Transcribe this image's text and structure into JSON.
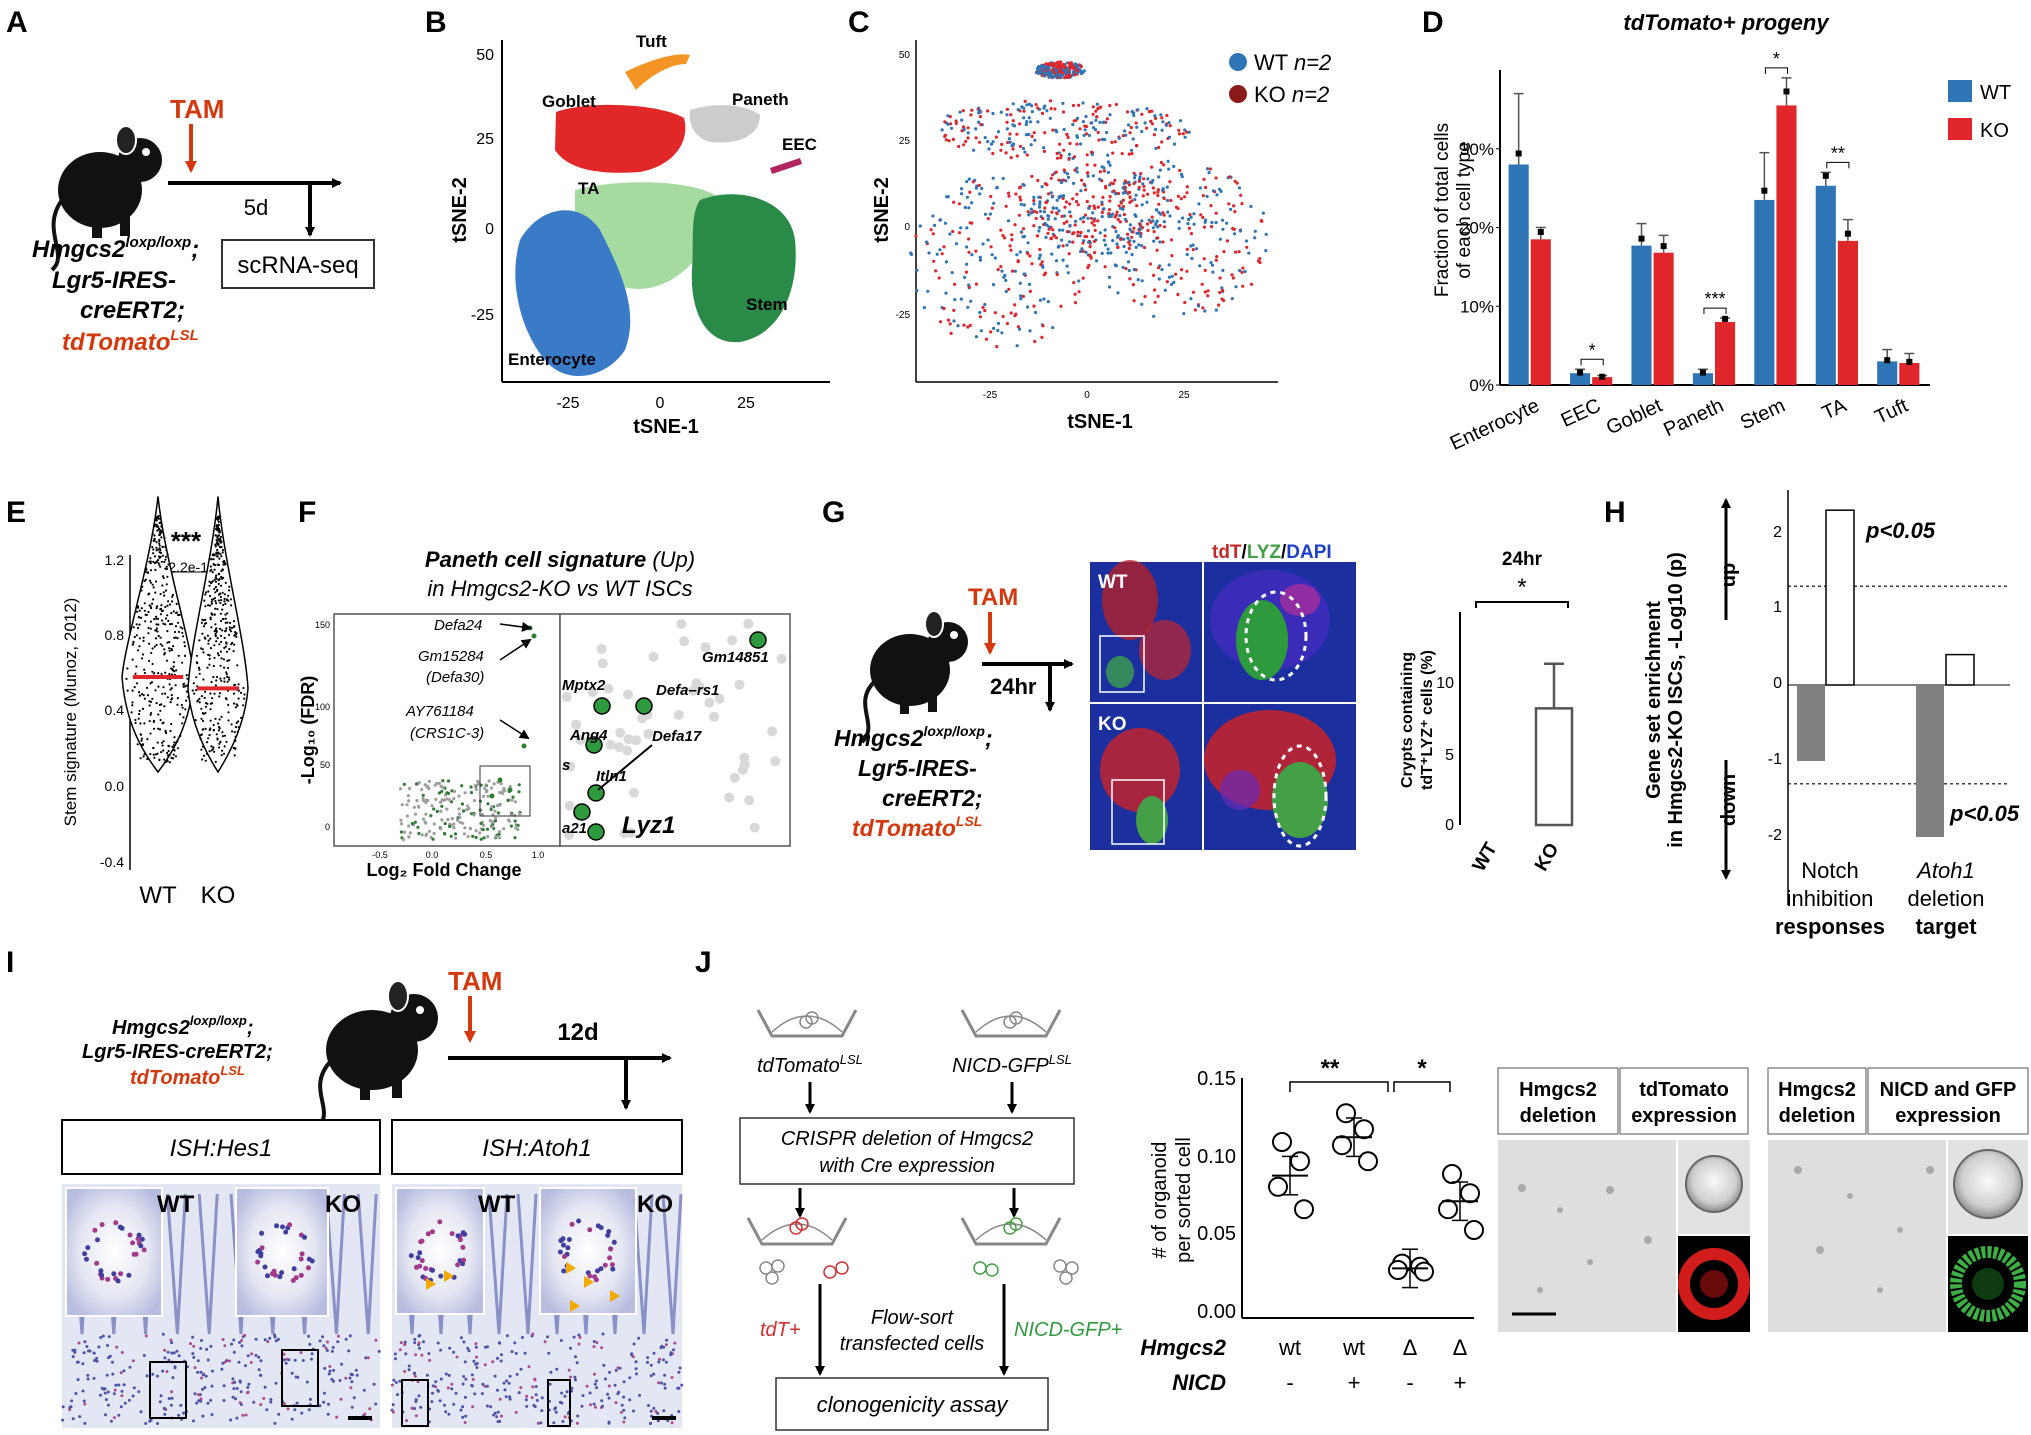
{
  "colors": {
    "wt": "#2e75b6",
    "ko": "#e0262b",
    "red": "#d4380d",
    "green": "#2e7d32",
    "tam": "#d4380d"
  },
  "panels": {
    "A": "A",
    "B": "B",
    "C": "C",
    "D": "D",
    "E": "E",
    "F": "F",
    "G": "G",
    "H": "H",
    "I": "I",
    "J": "J"
  },
  "a": {
    "tam": "TAM",
    "days": "5d",
    "assay": "scRNA-seq",
    "g1": "Hmgcs2",
    "g1sup": "loxp/loxp",
    "g1end": ";",
    "g2": "Lgr5-IRES-",
    "g3": "creERT2",
    "g3end": ";",
    "g4": "tdTomato",
    "g4sup": "LSL"
  },
  "b": {
    "xlabel": "tSNE-1",
    "ylabel": "tSNE-2",
    "yticks": [
      "50",
      "25",
      "0",
      "-25"
    ],
    "xticks": [
      "-25",
      "0",
      "25"
    ],
    "clusters": {
      "tuft": "Tuft",
      "goblet": "Goblet",
      "paneth": "Paneth",
      "eec": "EEC",
      "ta": "TA",
      "stem": "Stem",
      "enterocyte": "Enterocyte"
    }
  },
  "c": {
    "xlabel": "tSNE-1",
    "ylabel": "tSNE-2",
    "yticks": [
      "50",
      "25",
      "0",
      "-25"
    ],
    "xticks": [
      "-25",
      "0",
      "25"
    ],
    "legend_wt": "WT",
    "legend_wt_n": "n=2",
    "legend_ko": "KO",
    "legend_ko_n": "n=2"
  },
  "d": {
    "title": "tdTomato+ progeny",
    "ylabel1": "Fraction of total cells",
    "ylabel2": "of each cell type",
    "yticks": [
      "0%",
      "10%",
      "20%",
      "30%"
    ],
    "legend_wt": "WT",
    "legend_ko": "KO"
  },
  "chart_data": [
    {
      "type": "bar",
      "title": "tdTomato+ progeny",
      "ylabel": "Fraction of total cells of each cell type",
      "categories": [
        "Enterocyte",
        "EEC",
        "Goblet",
        "Paneth",
        "Stem",
        "TA",
        "Tuft"
      ],
      "series": [
        {
          "name": "WT",
          "values": [
            28,
            1.5,
            17.7,
            1.5,
            23.5,
            25.3,
            3.0
          ]
        },
        {
          "name": "KO",
          "values": [
            18.5,
            1.0,
            16.8,
            8.0,
            35.5,
            18.3,
            2.8
          ]
        }
      ],
      "significance": [
        "",
        "*",
        "",
        "***",
        "*",
        "**",
        ""
      ],
      "ylim": [
        0,
        40
      ]
    },
    {
      "type": "bar",
      "title": "24hr",
      "ylabel": "Crypts containing tdT+LYZ+ cells (%)",
      "categories": [
        "WT",
        "KO"
      ],
      "values": [
        0,
        8.1
      ],
      "significance": "*",
      "ylim": [
        0,
        15
      ]
    },
    {
      "type": "bar",
      "ylabel": "Gene set enrichment in Hmgcs2-KO ISCs, -Log10(p)",
      "categories": [
        "Notch inhibition responses",
        "Atoh1 deletion target"
      ],
      "series": [
        {
          "name": "down",
          "values": [
            -1.0,
            -2.0
          ]
        },
        {
          "name": "up",
          "values": [
            2.3,
            0.4
          ]
        }
      ],
      "ylim": [
        -2.2,
        2.5
      ]
    },
    {
      "type": "scatter",
      "ylabel": "# of organoid per sorted cell",
      "categories": [
        "wt -",
        "wt +",
        "Δ -",
        "Δ +"
      ],
      "series": [
        {
          "name": "wt -",
          "values": [
            0.11,
            0.098,
            0.082,
            0.068
          ]
        },
        {
          "name": "wt +",
          "values": [
            0.128,
            0.118,
            0.108,
            0.098
          ]
        },
        {
          "name": "Δ -",
          "values": [
            0.034,
            0.032,
            0.03,
            0.029
          ]
        },
        {
          "name": "Δ +",
          "values": [
            0.09,
            0.078,
            0.068,
            0.055
          ]
        }
      ],
      "means": [
        0.089,
        0.113,
        0.031,
        0.073
      ],
      "ylim": [
        0,
        0.15
      ]
    }
  ],
  "e": {
    "stars": "***",
    "pval": "< 2.2e-16",
    "ylabel": "Stem signature (Munoz, 2012)",
    "yticks": [
      "1.2",
      "0.8",
      "0.4",
      "0.0",
      "-0.4"
    ],
    "xticks": [
      "WT",
      "KO"
    ]
  },
  "f": {
    "title_bold": "Paneth cell signature",
    "title_up": " (Up)",
    "subtitle": "in Hmgcs2-KO vs WT ISCs",
    "ylabel": "-Log₁₀ (FDR)",
    "xlabel": "Log₂ Fold Change",
    "yticks": [
      "150",
      "100",
      "50",
      "0"
    ],
    "xticks": [
      "-0.5",
      "0.0",
      "0.5",
      "1.0"
    ],
    "genes_left": {
      "defa24": "Defa24",
      "gm15284": "Gm15284",
      "defa30": "(Defa30)",
      "ay": "AY761184",
      "crs": "(CRS1C-3)"
    },
    "genes_right": {
      "gm14851": "Gm14851",
      "mptx2": "Mptx2",
      "defars1": "Defa–rs1",
      "ang4": "Ang4",
      "defa17": "Defa17",
      "itln1": "Itln1",
      "s": "s",
      "a21": "a21",
      "lyz1": "Lyz1"
    }
  },
  "g": {
    "tam": "TAM",
    "hours": "24hr",
    "g1": "Hmgcs2",
    "g1sup": "loxp/loxp",
    "g1end": ";",
    "g2": "Lgr5-IRES-",
    "g3": "creERT2",
    "g3end": ";",
    "g4": "tdTomato",
    "g4sup": "LSL",
    "stain_tdt": "tdT",
    "stain_lyz": "LYZ",
    "stain_dapi": "DAPI",
    "wt": "WT",
    "ko": "KO",
    "chart_title": "24hr",
    "stars": "*",
    "ylabel1": "Crypts containing",
    "ylabel2": "tdT⁺LYZ⁺ cells (%)",
    "yticks": [
      "10",
      "5",
      "0"
    ],
    "xticks": [
      "WT",
      "KO"
    ]
  },
  "h": {
    "ylabel1": "Gene set enrichment",
    "ylabel2": "in Hmgcs2-KO ISCs, -Log10 (p)",
    "up": "up",
    "down": "down",
    "yticks": [
      "2",
      "1",
      "0",
      "-1",
      "-2"
    ],
    "p_up": "p<0.05",
    "p_down": "p<0.05",
    "cat1a": "Notch",
    "cat1b": "inhibition",
    "cat1c": "responses",
    "cat2a": "Atoh1",
    "cat2b": "deletion",
    "cat2c": "target"
  },
  "i": {
    "tam": "TAM",
    "days": "12d",
    "g1": "Hmgcs2",
    "g1sup": "loxp/loxp",
    "g1end": ";",
    "g2": "Lgr5-IRES-creERT2",
    "g2end": ";",
    "g4": "tdTomato",
    "g4sup": "LSL",
    "ish_hes1": "ISH:Hes1",
    "ish_atoh1": "ISH:Atoh1",
    "wt": "WT",
    "ko": "KO"
  },
  "j": {
    "td_lsl": "tdTomato",
    "td_lsl_sup": "LSL",
    "nicd_lsl": "NICD-GFP",
    "nicd_lsl_sup": "LSL",
    "crispr1": "CRISPR deletion of Hmgcs2",
    "crispr2": "with Cre expression",
    "tdplus": "tdT+",
    "nicdplus": "NICD-GFP+",
    "flow1": "Flow-sort",
    "flow2": "transfected cells",
    "assay": "clonogenicity assay",
    "ylabel1": "# of organoid",
    "ylabel2": "per sorted cell",
    "yticks": [
      "0.15",
      "0.10",
      "0.05",
      "0.00"
    ],
    "stars_left": "**",
    "stars_right": "*",
    "row_hmgcs2": "Hmgcs2",
    "row_nicd": "NICD",
    "hm_vals": [
      "wt",
      "wt",
      "Δ",
      "Δ"
    ],
    "nicd_vals": [
      "-",
      "+",
      "-",
      "+"
    ],
    "box1a": "Hmgcs2",
    "box1b": "deletion",
    "box2a": "tdTomato",
    "box2b": "expression",
    "box3a": "Hmgcs2",
    "box3b": "deletion",
    "box4a": "NICD and GFP",
    "box4b": "expression"
  }
}
